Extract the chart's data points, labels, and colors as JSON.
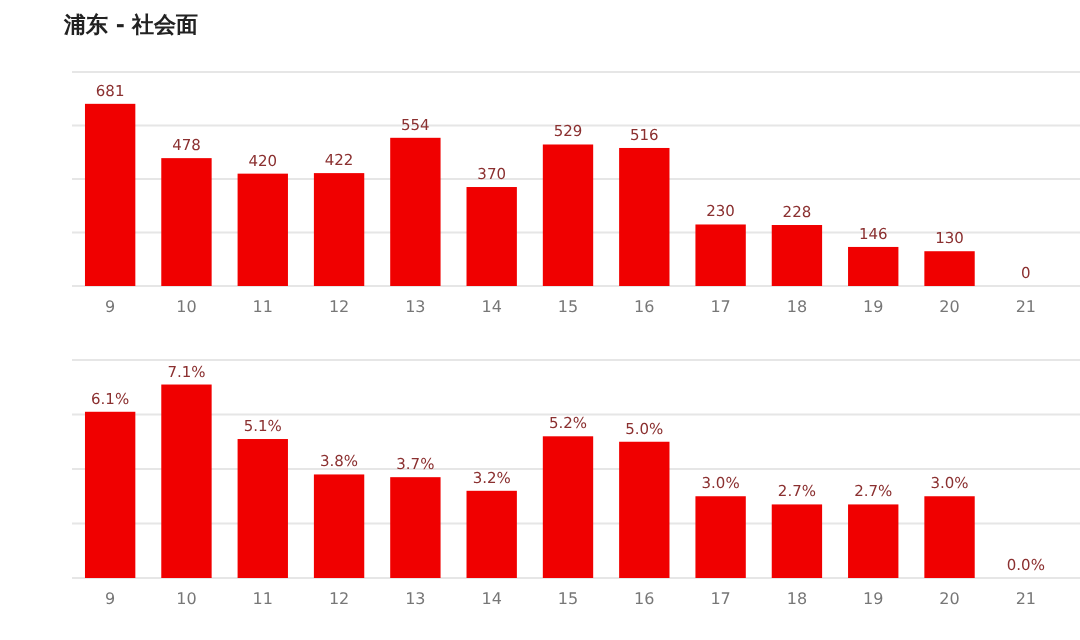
{
  "chart_data": [
    {
      "type": "bar",
      "title": "浦东 - 社会面",
      "categories": [
        "9",
        "10",
        "11",
        "12",
        "13",
        "14",
        "15",
        "16",
        "17",
        "18",
        "19",
        "20",
        "21"
      ],
      "values": [
        681,
        478,
        420,
        422,
        554,
        370,
        529,
        516,
        230,
        228,
        146,
        130,
        0
      ],
      "color": "#f00000",
      "data_labels": true,
      "ylim": [
        0,
        800
      ],
      "yticks": [
        {
          "value": 0,
          "label": null
        },
        {
          "value": 200,
          "label": null
        },
        {
          "value": 400,
          "label": null
        },
        {
          "value": 600,
          "label": null
        },
        {
          "value": 800,
          "label": null
        }
      ],
      "grid": "y",
      "tick_labels": "x"
    },
    {
      "type": "bar",
      "categories": [
        "9",
        "10",
        "11",
        "12",
        "13",
        "14",
        "15",
        "16",
        "17",
        "18",
        "19",
        "20",
        "21"
      ],
      "values": [
        6.1,
        7.1,
        5.1,
        3.8,
        3.7,
        3.2,
        5.2,
        5.0,
        3.0,
        2.7,
        2.7,
        3.0,
        0.0
      ],
      "color": "#f00000",
      "value_labels": [
        "6.1%",
        "7.1%",
        "5.1%",
        "3.8%",
        "3.7%",
        "3.2%",
        "5.2%",
        "5.0%",
        "3.0%",
        "2.7%",
        "2.7%",
        "3.0%",
        "0.0%"
      ],
      "ylim": [
        0,
        8
      ],
      "yticks": [
        {
          "value": 0,
          "label": null
        },
        {
          "value": 2,
          "label": null
        },
        {
          "value": 4,
          "label": null
        },
        {
          "value": 6,
          "label": null
        },
        {
          "value": 8,
          "label": null
        }
      ],
      "grid": "y",
      "tick_labels": "x"
    }
  ]
}
